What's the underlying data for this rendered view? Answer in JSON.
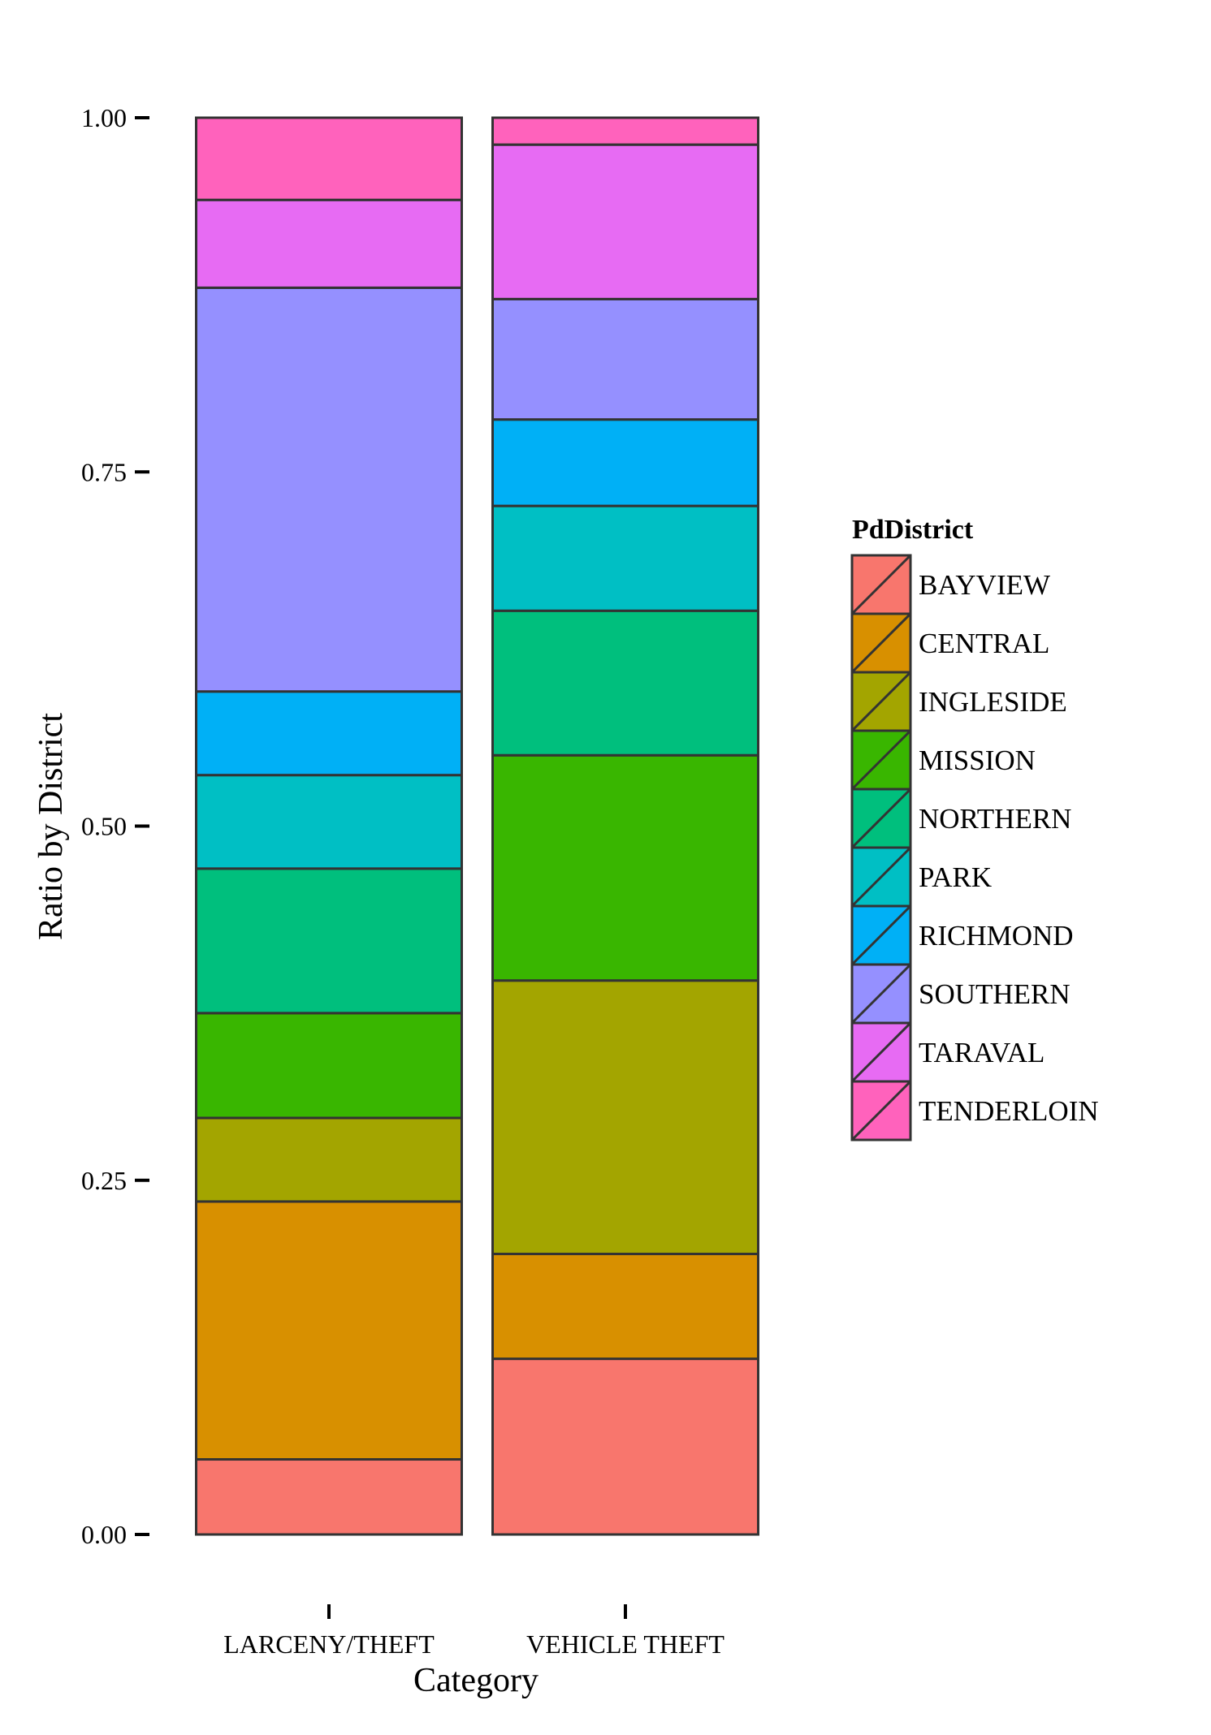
{
  "chart_data": {
    "type": "bar",
    "stacked": true,
    "xlabel": "Category",
    "ylabel": "Ratio by District",
    "ylim": [
      0,
      1
    ],
    "yticks": [
      0,
      0.25,
      0.5,
      0.75,
      1
    ],
    "ytick_labels": [
      "0.00",
      "0.25",
      "0.50",
      "0.75",
      "1.00"
    ],
    "categories": [
      "LARCENY/THEFT",
      "VEHICLE THEFT"
    ],
    "grid": false,
    "legend": {
      "title": "PdDistrict",
      "position": "right"
    },
    "series": [
      {
        "name": "BAYVIEW",
        "color": "#F8766D",
        "values": [
          0.053,
          0.124
        ]
      },
      {
        "name": "CENTRAL",
        "color": "#D89000",
        "values": [
          0.182,
          0.074
        ]
      },
      {
        "name": "INGLESIDE",
        "color": "#A3A500",
        "values": [
          0.059,
          0.193
        ]
      },
      {
        "name": "MISSION",
        "color": "#39B600",
        "values": [
          0.074,
          0.159
        ]
      },
      {
        "name": "NORTHERN",
        "color": "#00BF7D",
        "values": [
          0.102,
          0.102
        ]
      },
      {
        "name": "PARK",
        "color": "#00BFC4",
        "values": [
          0.066,
          0.074
        ]
      },
      {
        "name": "RICHMOND",
        "color": "#00B0F6",
        "values": [
          0.059,
          0.061
        ]
      },
      {
        "name": "SOUTHERN",
        "color": "#9590FF",
        "values": [
          0.285,
          0.085
        ]
      },
      {
        "name": "TARAVAL",
        "color": "#E76BF3",
        "values": [
          0.062,
          0.109
        ]
      },
      {
        "name": "TENDERLOIN",
        "color": "#FF62BC",
        "values": [
          0.058,
          0.019
        ]
      }
    ]
  }
}
